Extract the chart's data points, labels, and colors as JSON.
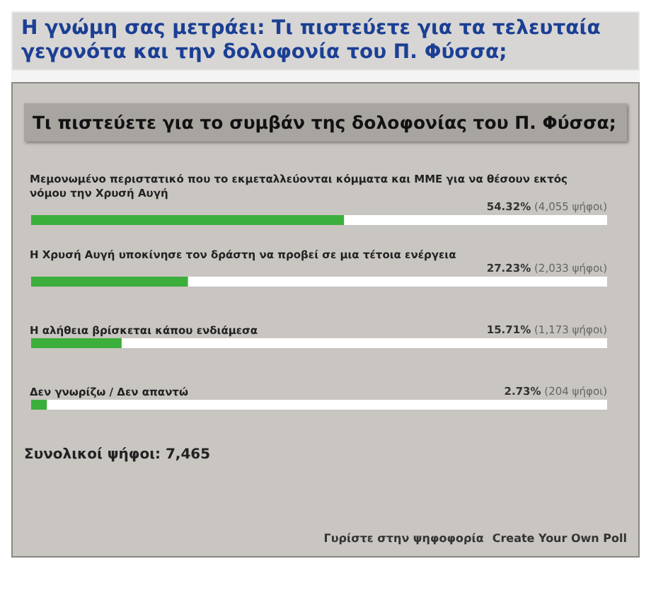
{
  "chart_data": {
    "type": "bar",
    "orientation": "horizontal",
    "title": "Η γνώμη σας μετράει: Τι πιστεύετε για τα τελευταία γεγονότα και την δολοφονία του Π. Φύσσα;",
    "subtitle": "Τι πιστεύετε για το συμβάν της δολοφονίας του Π. Φύσσα;",
    "categories": [
      "Μεμονωμένο περιστατικό που το εκμεταλλεύονται κόμματα και ΜΜΕ για να θέσουν εκτός νόμου την Χρυσή Αυγή",
      "Η Χρυσή Αυγή υποκίνησε τον δράστη να προβεί σε μια τέτοια ενέργεια",
      "Η αλήθεια βρίσκεται κάπου ενδιάμεσα",
      "Δεν γνωρίζω / Δεν απαντώ"
    ],
    "values": [
      54.32,
      27.23,
      15.71,
      2.73
    ],
    "value_labels": [
      "54.32% (4,055 ψήφοι)",
      "27.23% (2,033 ψήφοι)",
      "15.71% (1,173 ψήφοι)",
      "2.73% (204 ψήφοι)"
    ],
    "color": "#3cae3c",
    "xlim": [
      0,
      100
    ],
    "annotations": [
      "Συνολικοί ψήφοι: 7,465",
      "Γυρίστε στην ψηφοφορία",
      "Create Your Own Poll"
    ]
  }
}
